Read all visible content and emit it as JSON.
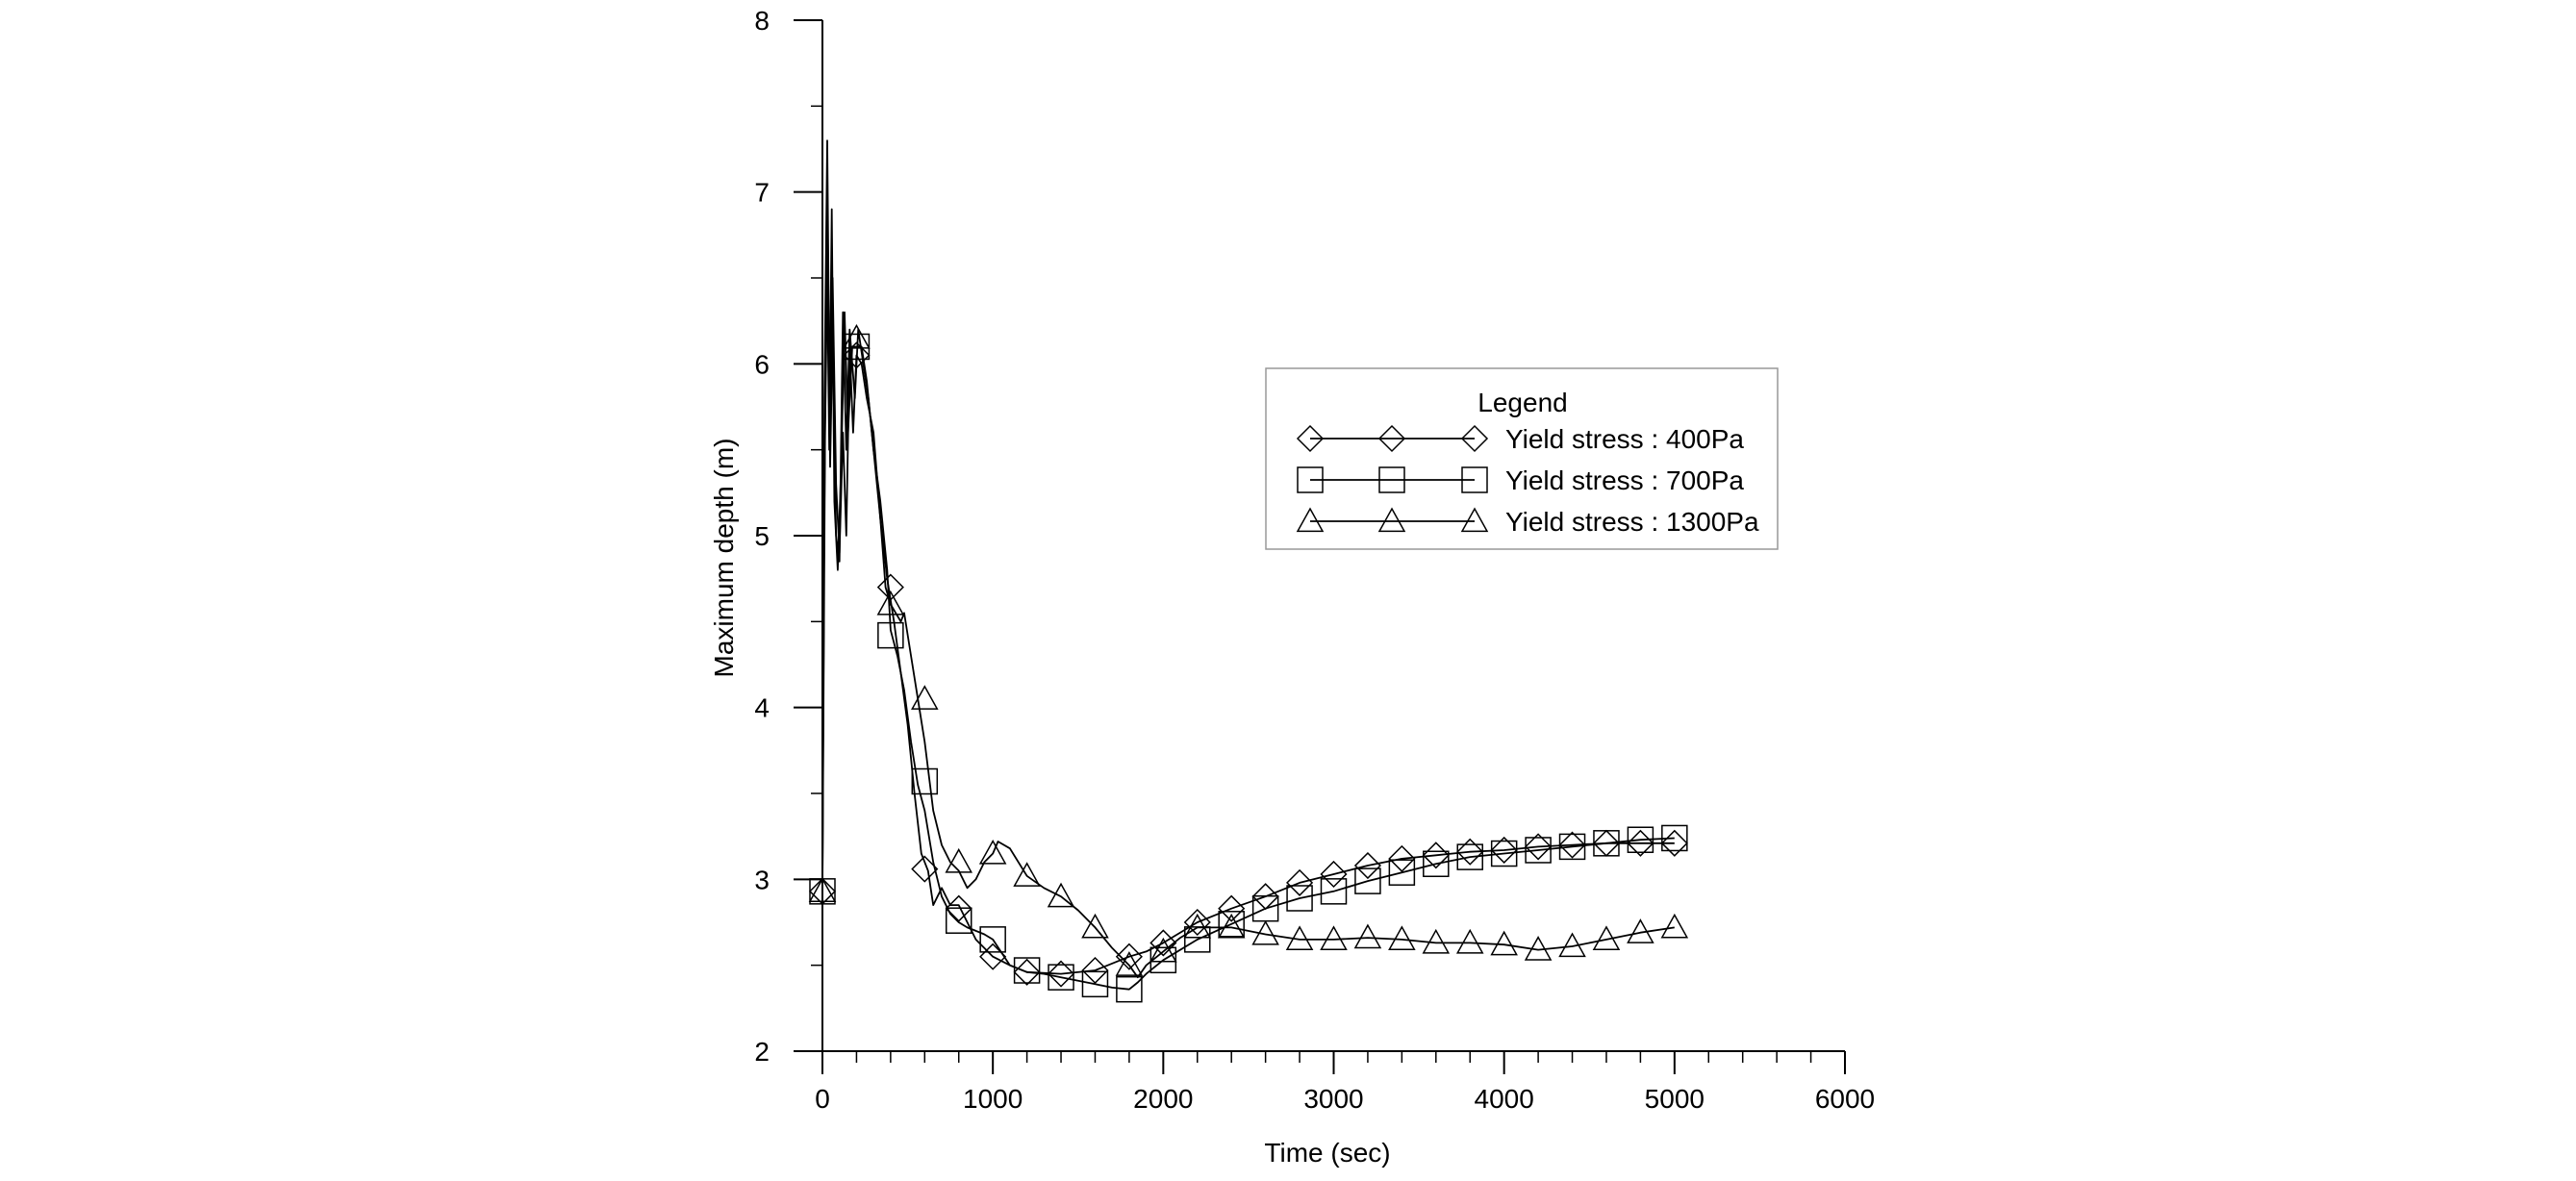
{
  "chart_data": {
    "type": "line",
    "title": "",
    "xlabel": "Time (sec)",
    "ylabel": "Maximum depth (m)",
    "xlim": [
      0,
      6000
    ],
    "ylim": [
      2,
      8
    ],
    "xticks": [
      0,
      1000,
      2000,
      3000,
      4000,
      5000,
      6000
    ],
    "yticks": [
      2,
      3,
      4,
      5,
      6,
      7,
      8
    ],
    "x_minor_step": 200,
    "y_minor_step": 0.5,
    "grid": false,
    "legend": {
      "title": "Legend",
      "position": "upper-middle-right",
      "entries": [
        "Yield stress : 400Pa",
        "Yield stress : 700Pa",
        "Yield stress : 1300Pa"
      ]
    },
    "series": [
      {
        "name": "Yield stress : 400Pa",
        "marker": "diamond",
        "line": [
          [
            0,
            2.93
          ],
          [
            15,
            5.6
          ],
          [
            30,
            6.6
          ],
          [
            45,
            5.7
          ],
          [
            60,
            6.5
          ],
          [
            80,
            5.3
          ],
          [
            100,
            4.9
          ],
          [
            120,
            5.6
          ],
          [
            140,
            5.0
          ],
          [
            160,
            6.1
          ],
          [
            180,
            5.6
          ],
          [
            200,
            6.05
          ],
          [
            230,
            6.0
          ],
          [
            260,
            5.8
          ],
          [
            300,
            5.6
          ],
          [
            340,
            5.1
          ],
          [
            380,
            4.75
          ],
          [
            420,
            4.5
          ],
          [
            460,
            4.2
          ],
          [
            500,
            3.9
          ],
          [
            540,
            3.5
          ],
          [
            580,
            3.15
          ],
          [
            620,
            3.05
          ],
          [
            650,
            2.85
          ],
          [
            700,
            2.95
          ],
          [
            750,
            2.85
          ],
          [
            800,
            2.85
          ],
          [
            850,
            2.75
          ],
          [
            900,
            2.65
          ],
          [
            950,
            2.6
          ],
          [
            1000,
            2.55
          ],
          [
            1100,
            2.5
          ],
          [
            1200,
            2.46
          ],
          [
            1400,
            2.45
          ],
          [
            1600,
            2.47
          ],
          [
            1800,
            2.55
          ],
          [
            1900,
            2.58
          ],
          [
            2000,
            2.63
          ],
          [
            2200,
            2.75
          ],
          [
            2400,
            2.83
          ],
          [
            2600,
            2.9
          ],
          [
            2800,
            2.98
          ],
          [
            3000,
            3.03
          ],
          [
            3200,
            3.08
          ],
          [
            3400,
            3.12
          ],
          [
            3600,
            3.14
          ],
          [
            3800,
            3.16
          ],
          [
            4000,
            3.17
          ],
          [
            4200,
            3.19
          ],
          [
            4400,
            3.2
          ],
          [
            4600,
            3.21
          ],
          [
            4800,
            3.21
          ],
          [
            5000,
            3.21
          ]
        ],
        "markers": [
          [
            0,
            2.93
          ],
          [
            200,
            6.05
          ],
          [
            400,
            4.7
          ],
          [
            600,
            3.06
          ],
          [
            800,
            2.83
          ],
          [
            1000,
            2.55
          ],
          [
            1200,
            2.46
          ],
          [
            1400,
            2.45
          ],
          [
            1600,
            2.47
          ],
          [
            1800,
            2.55
          ],
          [
            2000,
            2.63
          ],
          [
            2200,
            2.75
          ],
          [
            2400,
            2.83
          ],
          [
            2600,
            2.9
          ],
          [
            2800,
            2.98
          ],
          [
            3000,
            3.03
          ],
          [
            3200,
            3.08
          ],
          [
            3400,
            3.12
          ],
          [
            3600,
            3.14
          ],
          [
            3800,
            3.16
          ],
          [
            4000,
            3.17
          ],
          [
            4200,
            3.19
          ],
          [
            4400,
            3.2
          ],
          [
            4600,
            3.21
          ],
          [
            4800,
            3.21
          ],
          [
            5000,
            3.21
          ]
        ]
      },
      {
        "name": "Yield stress : 700Pa",
        "marker": "square",
        "line": [
          [
            0,
            2.93
          ],
          [
            10,
            5.0
          ],
          [
            25,
            6.8
          ],
          [
            40,
            5.5
          ],
          [
            55,
            6.9
          ],
          [
            70,
            5.2
          ],
          [
            90,
            4.8
          ],
          [
            110,
            5.4
          ],
          [
            130,
            6.3
          ],
          [
            150,
            5.6
          ],
          [
            175,
            6.1
          ],
          [
            200,
            6.1
          ],
          [
            230,
            6.1
          ],
          [
            260,
            5.9
          ],
          [
            300,
            5.5
          ],
          [
            340,
            5.2
          ],
          [
            380,
            4.8
          ],
          [
            400,
            4.45
          ],
          [
            440,
            4.3
          ],
          [
            480,
            4.1
          ],
          [
            520,
            3.8
          ],
          [
            560,
            3.55
          ],
          [
            600,
            3.4
          ],
          [
            650,
            3.1
          ],
          [
            700,
            2.9
          ],
          [
            750,
            2.8
          ],
          [
            800,
            2.75
          ],
          [
            850,
            2.72
          ],
          [
            900,
            2.7
          ],
          [
            950,
            2.68
          ],
          [
            1000,
            2.65
          ],
          [
            1100,
            2.5
          ],
          [
            1200,
            2.46
          ],
          [
            1300,
            2.45
          ],
          [
            1400,
            2.43
          ],
          [
            1500,
            2.41
          ],
          [
            1600,
            2.39
          ],
          [
            1700,
            2.37
          ],
          [
            1800,
            2.36
          ],
          [
            1850,
            2.4
          ],
          [
            1900,
            2.45
          ],
          [
            2000,
            2.53
          ],
          [
            2200,
            2.65
          ],
          [
            2400,
            2.74
          ],
          [
            2600,
            2.83
          ],
          [
            2800,
            2.89
          ],
          [
            3000,
            2.93
          ],
          [
            3200,
            2.99
          ],
          [
            3400,
            3.04
          ],
          [
            3600,
            3.09
          ],
          [
            3800,
            3.13
          ],
          [
            4000,
            3.15
          ],
          [
            4200,
            3.17
          ],
          [
            4400,
            3.19
          ],
          [
            4600,
            3.21
          ],
          [
            4800,
            3.23
          ],
          [
            5000,
            3.24
          ]
        ],
        "markers": [
          [
            0,
            2.93
          ],
          [
            200,
            6.1
          ],
          [
            400,
            4.42
          ],
          [
            600,
            3.57
          ],
          [
            800,
            2.76
          ],
          [
            1000,
            2.65
          ],
          [
            1200,
            2.47
          ],
          [
            1400,
            2.43
          ],
          [
            1600,
            2.39
          ],
          [
            1800,
            2.36
          ],
          [
            2000,
            2.53
          ],
          [
            2200,
            2.65
          ],
          [
            2400,
            2.74
          ],
          [
            2600,
            2.83
          ],
          [
            2800,
            2.89
          ],
          [
            3000,
            2.93
          ],
          [
            3200,
            2.99
          ],
          [
            3400,
            3.04
          ],
          [
            3600,
            3.09
          ],
          [
            3800,
            3.13
          ],
          [
            4000,
            3.15
          ],
          [
            4200,
            3.17
          ],
          [
            4400,
            3.19
          ],
          [
            4600,
            3.21
          ],
          [
            4800,
            3.23
          ],
          [
            5000,
            3.24
          ]
        ]
      },
      {
        "name": "Yield stress : 1300Pa",
        "marker": "triangle",
        "line": [
          [
            0,
            2.93
          ],
          [
            12,
            5.8
          ],
          [
            28,
            7.3
          ],
          [
            45,
            5.4
          ],
          [
            60,
            6.2
          ],
          [
            80,
            5.0
          ],
          [
            100,
            4.85
          ],
          [
            120,
            6.3
          ],
          [
            140,
            5.5
          ],
          [
            160,
            6.2
          ],
          [
            190,
            5.8
          ],
          [
            210,
            6.2
          ],
          [
            240,
            6.0
          ],
          [
            270,
            5.8
          ],
          [
            300,
            5.5
          ],
          [
            340,
            5.1
          ],
          [
            370,
            4.7
          ],
          [
            400,
            4.6
          ],
          [
            430,
            4.55
          ],
          [
            460,
            4.5
          ],
          [
            480,
            4.55
          ],
          [
            520,
            4.3
          ],
          [
            560,
            4.05
          ],
          [
            600,
            3.8
          ],
          [
            650,
            3.4
          ],
          [
            700,
            3.2
          ],
          [
            750,
            3.1
          ],
          [
            800,
            3.05
          ],
          [
            850,
            2.95
          ],
          [
            900,
            3.0
          ],
          [
            950,
            3.1
          ],
          [
            1000,
            3.15
          ],
          [
            1030,
            3.22
          ],
          [
            1100,
            3.18
          ],
          [
            1200,
            3.02
          ],
          [
            1300,
            2.95
          ],
          [
            1400,
            2.9
          ],
          [
            1500,
            2.82
          ],
          [
            1600,
            2.72
          ],
          [
            1700,
            2.6
          ],
          [
            1800,
            2.5
          ],
          [
            1850,
            2.43
          ],
          [
            1900,
            2.5
          ],
          [
            2000,
            2.58
          ],
          [
            2100,
            2.66
          ],
          [
            2200,
            2.72
          ],
          [
            2400,
            2.72
          ],
          [
            2600,
            2.68
          ],
          [
            2800,
            2.65
          ],
          [
            3000,
            2.65
          ],
          [
            3200,
            2.66
          ],
          [
            3400,
            2.65
          ],
          [
            3600,
            2.63
          ],
          [
            3800,
            2.63
          ],
          [
            4000,
            2.62
          ],
          [
            4200,
            2.59
          ],
          [
            4400,
            2.61
          ],
          [
            4600,
            2.65
          ],
          [
            4800,
            2.69
          ],
          [
            5000,
            2.72
          ]
        ],
        "markers": [
          [
            0,
            2.93
          ],
          [
            200,
            6.15
          ],
          [
            400,
            4.6
          ],
          [
            600,
            4.05
          ],
          [
            800,
            3.1
          ],
          [
            1000,
            3.15
          ],
          [
            1200,
            3.02
          ],
          [
            1400,
            2.9
          ],
          [
            1600,
            2.72
          ],
          [
            1800,
            2.5
          ],
          [
            2000,
            2.58
          ],
          [
            2200,
            2.72
          ],
          [
            2400,
            2.72
          ],
          [
            2600,
            2.68
          ],
          [
            2800,
            2.65
          ],
          [
            3000,
            2.65
          ],
          [
            3200,
            2.66
          ],
          [
            3400,
            2.65
          ],
          [
            3600,
            2.63
          ],
          [
            3800,
            2.63
          ],
          [
            4000,
            2.62
          ],
          [
            4200,
            2.59
          ],
          [
            4400,
            2.61
          ],
          [
            4600,
            2.65
          ],
          [
            4800,
            2.69
          ],
          [
            5000,
            2.72
          ]
        ]
      }
    ]
  }
}
